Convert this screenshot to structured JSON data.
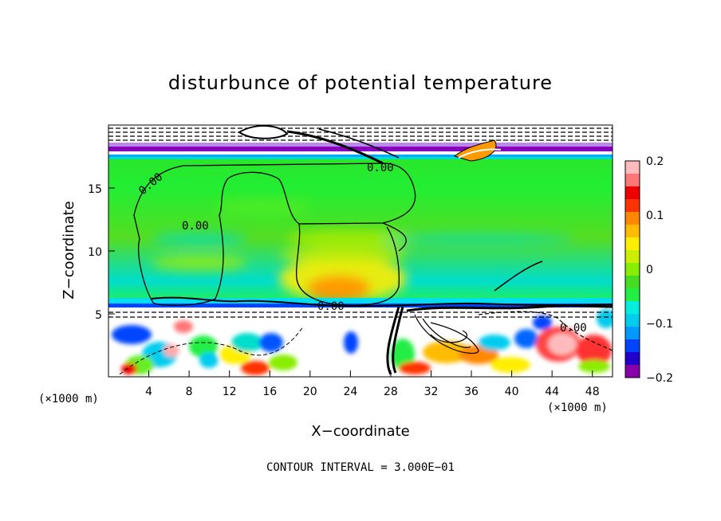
{
  "chart_data": {
    "type": "heatmap",
    "title": "disturbunce of potential temperature",
    "xlabel": "X−coordinate",
    "ylabel": "Z−coordinate",
    "x_unit_left": "(×1000 m)",
    "x_unit_right": "(×1000 m)",
    "x_ticks": [
      4,
      8,
      12,
      16,
      20,
      24,
      28,
      32,
      36,
      40,
      44,
      48
    ],
    "y_ticks": [
      5,
      10,
      15
    ],
    "xlim": [
      0,
      50
    ],
    "ylim": [
      0,
      20
    ],
    "colorbar": {
      "ticks": [
        {
          "value": 0.2,
          "label": "0.2"
        },
        {
          "value": 0.1,
          "label": "0.1"
        },
        {
          "value": 0.0,
          "label": "0"
        },
        {
          "value": -0.1,
          "label": "−0.1"
        },
        {
          "value": -0.2,
          "label": "−0.2"
        }
      ],
      "range": [
        -0.2,
        0.2
      ],
      "colors": [
        "#8800aa",
        "#2200cc",
        "#0044ff",
        "#0099ff",
        "#00ccee",
        "#00eedd",
        "#22ee44",
        "#44dd22",
        "#88ee00",
        "#ccee00",
        "#ffee00",
        "#ffbb00",
        "#ff8800",
        "#ff3300",
        "#ee0000",
        "#ff7777",
        "#ffbbbb"
      ]
    },
    "contour_labels": [
      {
        "text": "0.00",
        "x": 8,
        "z": 12.0
      },
      {
        "text": "0.00",
        "x": 22.3,
        "z": 5.8
      },
      {
        "text": "0.00",
        "x": 26.5,
        "z": 16.6
      },
      {
        "text": "0.00",
        "x": 44.8,
        "z": 3.9
      },
      {
        "text": "0.00",
        "x": 3.5,
        "z": 15.2
      }
    ],
    "contour_interval_label": "CONTOUR INTERVAL = 3.000E−01"
  }
}
